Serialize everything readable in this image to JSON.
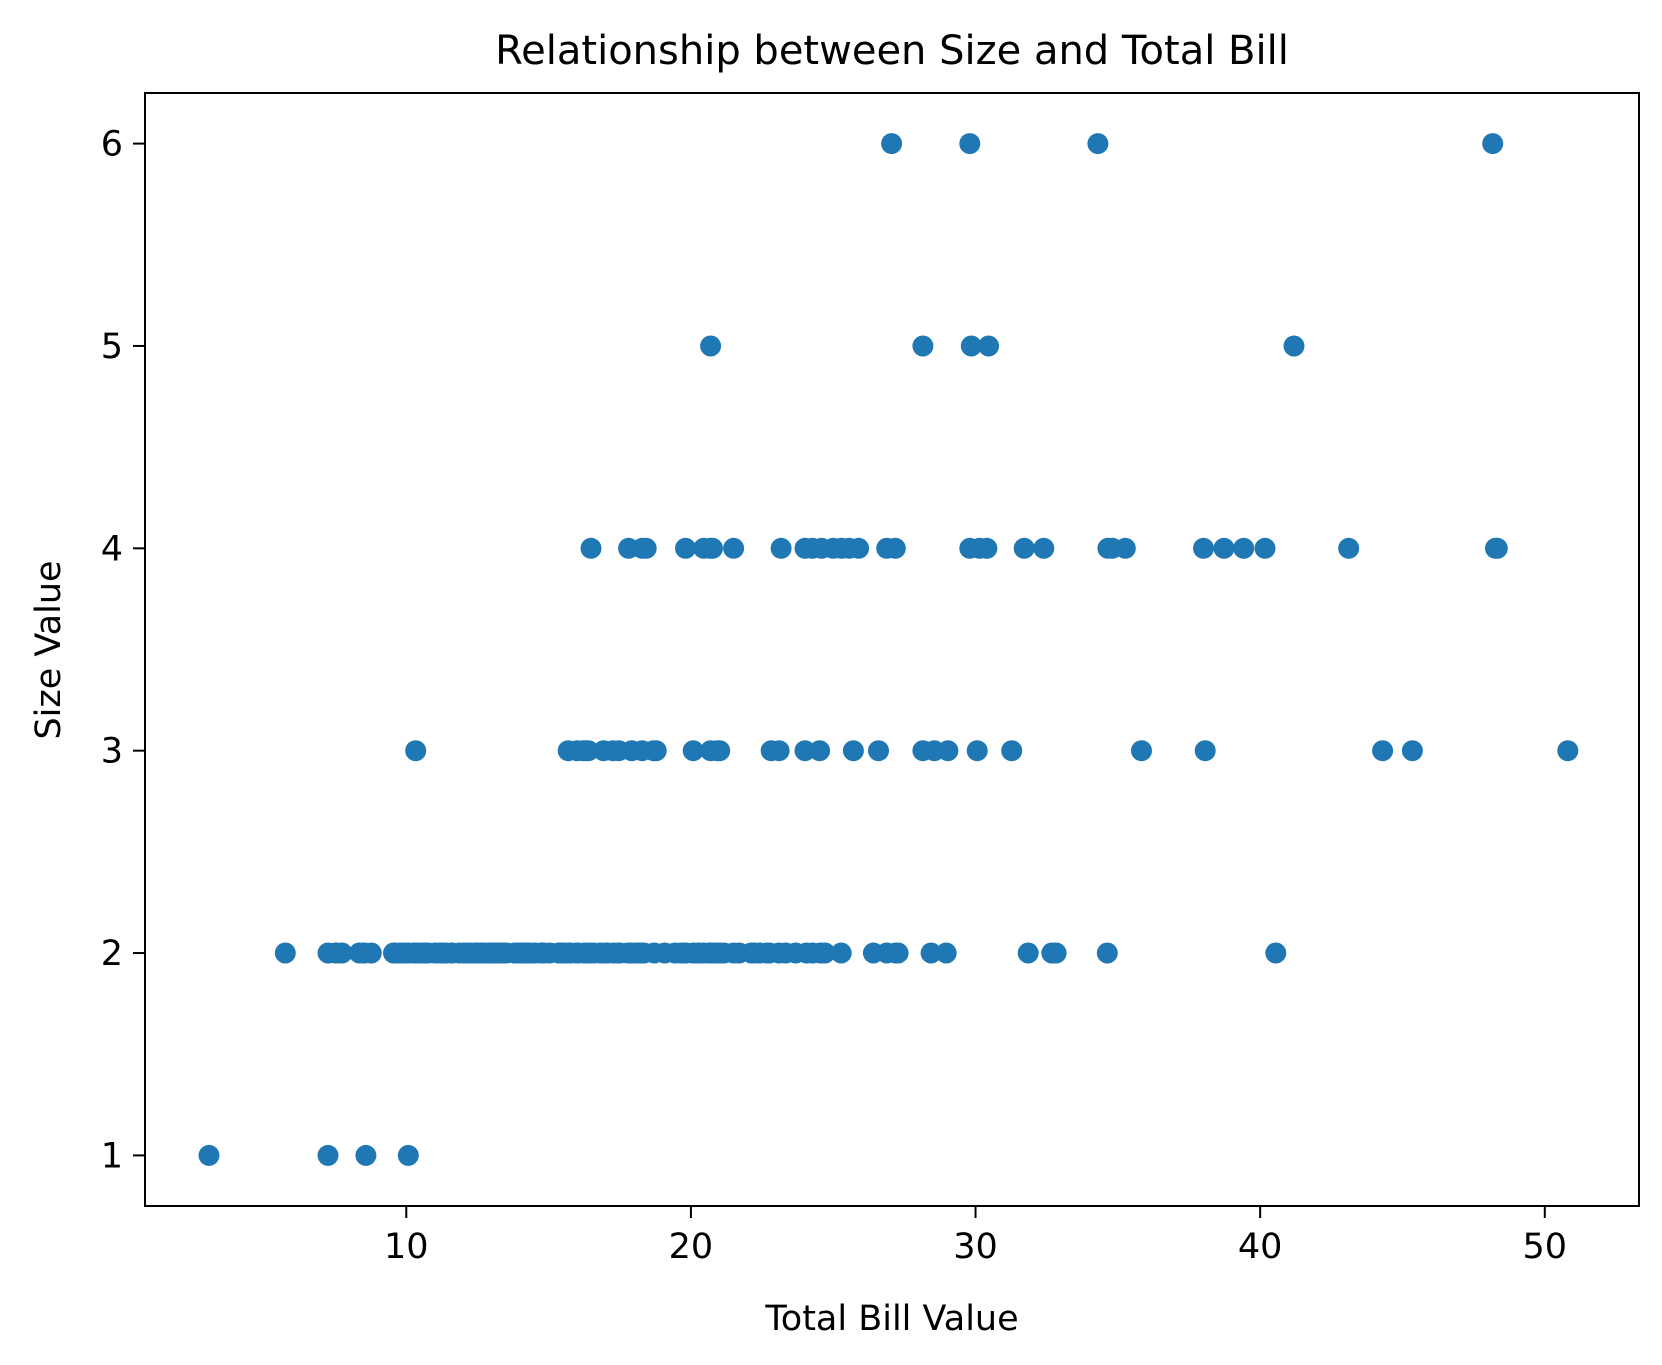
{
  "chart_data": {
    "type": "scatter",
    "title": "Relationship between Size and Total Bill",
    "xlabel": "Total Bill Value",
    "ylabel": "Size Value",
    "xlim": [
      0.82,
      53.31
    ],
    "ylim": [
      0.75,
      6.25
    ],
    "xticks": [
      10,
      20,
      30,
      40,
      50
    ],
    "yticks": [
      1,
      2,
      3,
      4,
      5,
      6
    ],
    "grid": false,
    "marker_color": "#1f77b4",
    "series": [
      {
        "points": [
          [
            3.07,
            1
          ],
          [
            7.25,
            1
          ],
          [
            8.58,
            1
          ],
          [
            10.07,
            1
          ],
          [
            5.75,
            2
          ],
          [
            7.25,
            2
          ],
          [
            7.51,
            2
          ],
          [
            7.74,
            2
          ],
          [
            7.56,
            2
          ],
          [
            8.35,
            2
          ],
          [
            8.51,
            2
          ],
          [
            8.77,
            2
          ],
          [
            8.52,
            2
          ],
          [
            9.55,
            2
          ],
          [
            9.6,
            2
          ],
          [
            9.78,
            2
          ],
          [
            9.94,
            2
          ],
          [
            10.07,
            2
          ],
          [
            10.27,
            2
          ],
          [
            10.29,
            2
          ],
          [
            10.33,
            2
          ],
          [
            10.34,
            2
          ],
          [
            10.51,
            2
          ],
          [
            10.59,
            2
          ],
          [
            10.63,
            2
          ],
          [
            10.65,
            2
          ],
          [
            10.77,
            2
          ],
          [
            11.02,
            2
          ],
          [
            11.17,
            2
          ],
          [
            11.24,
            2
          ],
          [
            11.35,
            2
          ],
          [
            11.38,
            2
          ],
          [
            11.59,
            2
          ],
          [
            11.61,
            2
          ],
          [
            11.87,
            2
          ],
          [
            12.02,
            2
          ],
          [
            12.16,
            2
          ],
          [
            12.26,
            2
          ],
          [
            12.43,
            2
          ],
          [
            12.46,
            2
          ],
          [
            12.54,
            2
          ],
          [
            12.6,
            2
          ],
          [
            12.66,
            2
          ],
          [
            12.74,
            2
          ],
          [
            12.9,
            2
          ],
          [
            13.0,
            2
          ],
          [
            13.13,
            2
          ],
          [
            13.16,
            2
          ],
          [
            13.28,
            2
          ],
          [
            13.37,
            2
          ],
          [
            13.42,
            2
          ],
          [
            13.51,
            2
          ],
          [
            13.81,
            2
          ],
          [
            13.94,
            2
          ],
          [
            14.07,
            2
          ],
          [
            14.15,
            2
          ],
          [
            14.26,
            2
          ],
          [
            14.31,
            2
          ],
          [
            14.48,
            2
          ],
          [
            14.52,
            2
          ],
          [
            14.73,
            2
          ],
          [
            14.78,
            2
          ],
          [
            14.83,
            2
          ],
          [
            15.04,
            2
          ],
          [
            15.36,
            2
          ],
          [
            15.38,
            2
          ],
          [
            15.48,
            2
          ],
          [
            15.53,
            2
          ],
          [
            15.69,
            2
          ],
          [
            15.77,
            2
          ],
          [
            15.98,
            2
          ],
          [
            16.04,
            2
          ],
          [
            16.27,
            2
          ],
          [
            16.29,
            2
          ],
          [
            16.45,
            2
          ],
          [
            16.58,
            2
          ],
          [
            16.82,
            2
          ],
          [
            16.99,
            2
          ],
          [
            17.07,
            2
          ],
          [
            17.29,
            2
          ],
          [
            17.46,
            2
          ],
          [
            17.51,
            2
          ],
          [
            17.78,
            2
          ],
          [
            17.89,
            2
          ],
          [
            18.04,
            2
          ],
          [
            18.15,
            2
          ],
          [
            18.24,
            2
          ],
          [
            18.28,
            2
          ],
          [
            18.35,
            2
          ],
          [
            18.71,
            2
          ],
          [
            19.08,
            2
          ],
          [
            19.44,
            2
          ],
          [
            19.65,
            2
          ],
          [
            19.77,
            2
          ],
          [
            19.82,
            2
          ],
          [
            20.08,
            2
          ],
          [
            20.23,
            2
          ],
          [
            20.29,
            2
          ],
          [
            20.45,
            2
          ],
          [
            20.65,
            2
          ],
          [
            20.69,
            2
          ],
          [
            20.76,
            2
          ],
          [
            20.9,
            2
          ],
          [
            21.01,
            2
          ],
          [
            21.16,
            2
          ],
          [
            21.5,
            2
          ],
          [
            21.7,
            2
          ],
          [
            22.12,
            2
          ],
          [
            22.23,
            2
          ],
          [
            22.42,
            2
          ],
          [
            22.67,
            2
          ],
          [
            22.76,
            2
          ],
          [
            23.1,
            2
          ],
          [
            23.33,
            2
          ],
          [
            23.68,
            2
          ],
          [
            24.06,
            2
          ],
          [
            24.27,
            2
          ],
          [
            24.55,
            2
          ],
          [
            24.71,
            2
          ],
          [
            25.28,
            2
          ],
          [
            26.41,
            2
          ],
          [
            26.88,
            2
          ],
          [
            27.2,
            2
          ],
          [
            27.28,
            2
          ],
          [
            28.44,
            2
          ],
          [
            28.97,
            2
          ],
          [
            31.85,
            2
          ],
          [
            32.68,
            2
          ],
          [
            32.83,
            2
          ],
          [
            34.63,
            2
          ],
          [
            40.55,
            2
          ],
          [
            10.33,
            3
          ],
          [
            15.69,
            3
          ],
          [
            16.0,
            3
          ],
          [
            16.21,
            3
          ],
          [
            16.31,
            3
          ],
          [
            16.4,
            3
          ],
          [
            16.93,
            3
          ],
          [
            17.26,
            3
          ],
          [
            17.47,
            3
          ],
          [
            17.92,
            3
          ],
          [
            18.29,
            3
          ],
          [
            18.69,
            3
          ],
          [
            18.78,
            3
          ],
          [
            20.08,
            3
          ],
          [
            20.69,
            3
          ],
          [
            20.92,
            3
          ],
          [
            21.01,
            3
          ],
          [
            22.82,
            3
          ],
          [
            23.1,
            3
          ],
          [
            24.01,
            3
          ],
          [
            24.52,
            3
          ],
          [
            25.71,
            3
          ],
          [
            26.59,
            3
          ],
          [
            28.15,
            3
          ],
          [
            28.55,
            3
          ],
          [
            29.03,
            3
          ],
          [
            30.06,
            3
          ],
          [
            31.27,
            3
          ],
          [
            35.83,
            3
          ],
          [
            38.07,
            3
          ],
          [
            44.3,
            3
          ],
          [
            45.35,
            3
          ],
          [
            50.81,
            3
          ],
          [
            16.49,
            4
          ],
          [
            17.81,
            4
          ],
          [
            18.29,
            4
          ],
          [
            18.43,
            4
          ],
          [
            19.81,
            4
          ],
          [
            20.45,
            4
          ],
          [
            20.69,
            4
          ],
          [
            20.76,
            4
          ],
          [
            21.5,
            4
          ],
          [
            23.17,
            4
          ],
          [
            24.01,
            4
          ],
          [
            24.27,
            4
          ],
          [
            24.59,
            4
          ],
          [
            25.0,
            4
          ],
          [
            25.29,
            4
          ],
          [
            25.56,
            4
          ],
          [
            25.89,
            4
          ],
          [
            26.88,
            4
          ],
          [
            27.18,
            4
          ],
          [
            29.8,
            4
          ],
          [
            30.14,
            4
          ],
          [
            30.4,
            4
          ],
          [
            31.71,
            4
          ],
          [
            32.4,
            4
          ],
          [
            34.65,
            4
          ],
          [
            34.81,
            4
          ],
          [
            35.26,
            4
          ],
          [
            38.01,
            4
          ],
          [
            38.73,
            4
          ],
          [
            39.42,
            4
          ],
          [
            40.17,
            4
          ],
          [
            43.11,
            4
          ],
          [
            48.27,
            4
          ],
          [
            48.33,
            4
          ],
          [
            20.69,
            5
          ],
          [
            28.15,
            5
          ],
          [
            29.85,
            5
          ],
          [
            30.46,
            5
          ],
          [
            41.19,
            5
          ],
          [
            27.05,
            6
          ],
          [
            29.8,
            6
          ],
          [
            34.3,
            6
          ],
          [
            48.17,
            6
          ]
        ]
      }
    ]
  }
}
